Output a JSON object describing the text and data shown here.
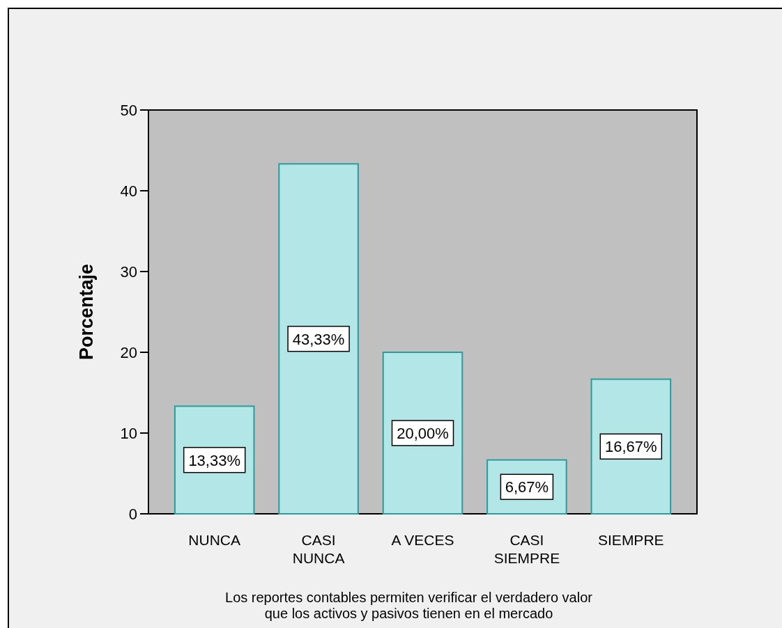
{
  "chart_data": {
    "type": "bar",
    "ylabel": "Porcentaje",
    "xlabel": "Los reportes contables permiten verificar el verdadero valor\nque los activos y pasivos tienen en el mercado",
    "categories": [
      "NUNCA",
      "CASI\nNUNCA",
      "A VECES",
      "CASI\nSIEMPRE",
      "SIEMPRE"
    ],
    "values": [
      13.33,
      43.33,
      20.0,
      6.67,
      16.67
    ],
    "value_labels": [
      "13,33%",
      "43,33%",
      "20,00%",
      "6,67%",
      "16,67%"
    ],
    "color": "#b3e6e6",
    "ylim": [
      0,
      50
    ],
    "yticks": [
      0,
      10,
      20,
      30,
      40,
      50
    ],
    "grid": false
  }
}
